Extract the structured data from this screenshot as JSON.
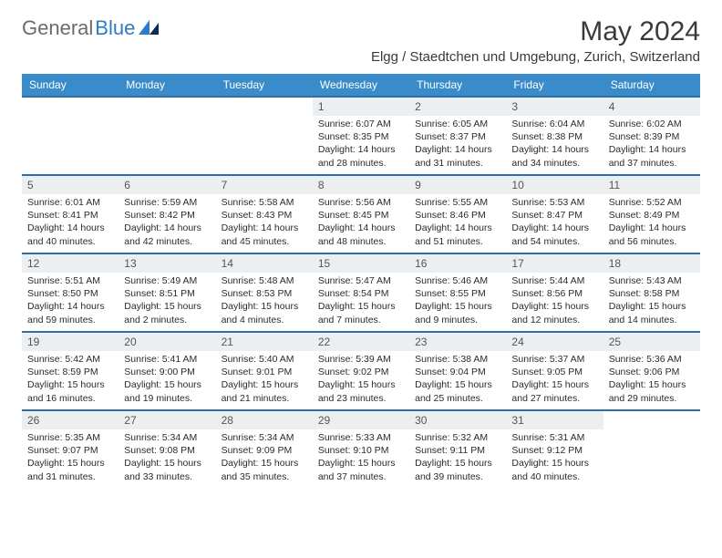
{
  "brand": {
    "part1": "General",
    "part2": "Blue"
  },
  "title": "May 2024",
  "location": "Elgg / Staedtchen und Umgebung, Zurich, Switzerland",
  "colors": {
    "header_bg": "#3a8bc9",
    "header_text": "#ffffff",
    "row_border": "#2f6fa6",
    "daynum_bg": "#eceff1",
    "text": "#2b2b2b",
    "logo_general": "#6b6b6b",
    "logo_blue": "#2f7cc0"
  },
  "weekdays": [
    "Sunday",
    "Monday",
    "Tuesday",
    "Wednesday",
    "Thursday",
    "Friday",
    "Saturday"
  ],
  "grid": {
    "first_weekday_index": 3,
    "days_in_month": 31
  },
  "days": {
    "1": {
      "sunrise": "6:07 AM",
      "sunset": "8:35 PM",
      "daylight": "14 hours and 28 minutes."
    },
    "2": {
      "sunrise": "6:05 AM",
      "sunset": "8:37 PM",
      "daylight": "14 hours and 31 minutes."
    },
    "3": {
      "sunrise": "6:04 AM",
      "sunset": "8:38 PM",
      "daylight": "14 hours and 34 minutes."
    },
    "4": {
      "sunrise": "6:02 AM",
      "sunset": "8:39 PM",
      "daylight": "14 hours and 37 minutes."
    },
    "5": {
      "sunrise": "6:01 AM",
      "sunset": "8:41 PM",
      "daylight": "14 hours and 40 minutes."
    },
    "6": {
      "sunrise": "5:59 AM",
      "sunset": "8:42 PM",
      "daylight": "14 hours and 42 minutes."
    },
    "7": {
      "sunrise": "5:58 AM",
      "sunset": "8:43 PM",
      "daylight": "14 hours and 45 minutes."
    },
    "8": {
      "sunrise": "5:56 AM",
      "sunset": "8:45 PM",
      "daylight": "14 hours and 48 minutes."
    },
    "9": {
      "sunrise": "5:55 AM",
      "sunset": "8:46 PM",
      "daylight": "14 hours and 51 minutes."
    },
    "10": {
      "sunrise": "5:53 AM",
      "sunset": "8:47 PM",
      "daylight": "14 hours and 54 minutes."
    },
    "11": {
      "sunrise": "5:52 AM",
      "sunset": "8:49 PM",
      "daylight": "14 hours and 56 minutes."
    },
    "12": {
      "sunrise": "5:51 AM",
      "sunset": "8:50 PM",
      "daylight": "14 hours and 59 minutes."
    },
    "13": {
      "sunrise": "5:49 AM",
      "sunset": "8:51 PM",
      "daylight": "15 hours and 2 minutes."
    },
    "14": {
      "sunrise": "5:48 AM",
      "sunset": "8:53 PM",
      "daylight": "15 hours and 4 minutes."
    },
    "15": {
      "sunrise": "5:47 AM",
      "sunset": "8:54 PM",
      "daylight": "15 hours and 7 minutes."
    },
    "16": {
      "sunrise": "5:46 AM",
      "sunset": "8:55 PM",
      "daylight": "15 hours and 9 minutes."
    },
    "17": {
      "sunrise": "5:44 AM",
      "sunset": "8:56 PM",
      "daylight": "15 hours and 12 minutes."
    },
    "18": {
      "sunrise": "5:43 AM",
      "sunset": "8:58 PM",
      "daylight": "15 hours and 14 minutes."
    },
    "19": {
      "sunrise": "5:42 AM",
      "sunset": "8:59 PM",
      "daylight": "15 hours and 16 minutes."
    },
    "20": {
      "sunrise": "5:41 AM",
      "sunset": "9:00 PM",
      "daylight": "15 hours and 19 minutes."
    },
    "21": {
      "sunrise": "5:40 AM",
      "sunset": "9:01 PM",
      "daylight": "15 hours and 21 minutes."
    },
    "22": {
      "sunrise": "5:39 AM",
      "sunset": "9:02 PM",
      "daylight": "15 hours and 23 minutes."
    },
    "23": {
      "sunrise": "5:38 AM",
      "sunset": "9:04 PM",
      "daylight": "15 hours and 25 minutes."
    },
    "24": {
      "sunrise": "5:37 AM",
      "sunset": "9:05 PM",
      "daylight": "15 hours and 27 minutes."
    },
    "25": {
      "sunrise": "5:36 AM",
      "sunset": "9:06 PM",
      "daylight": "15 hours and 29 minutes."
    },
    "26": {
      "sunrise": "5:35 AM",
      "sunset": "9:07 PM",
      "daylight": "15 hours and 31 minutes."
    },
    "27": {
      "sunrise": "5:34 AM",
      "sunset": "9:08 PM",
      "daylight": "15 hours and 33 minutes."
    },
    "28": {
      "sunrise": "5:34 AM",
      "sunset": "9:09 PM",
      "daylight": "15 hours and 35 minutes."
    },
    "29": {
      "sunrise": "5:33 AM",
      "sunset": "9:10 PM",
      "daylight": "15 hours and 37 minutes."
    },
    "30": {
      "sunrise": "5:32 AM",
      "sunset": "9:11 PM",
      "daylight": "15 hours and 39 minutes."
    },
    "31": {
      "sunrise": "5:31 AM",
      "sunset": "9:12 PM",
      "daylight": "15 hours and 40 minutes."
    }
  },
  "labels": {
    "sunrise": "Sunrise:",
    "sunset": "Sunset:",
    "daylight": "Daylight:"
  }
}
